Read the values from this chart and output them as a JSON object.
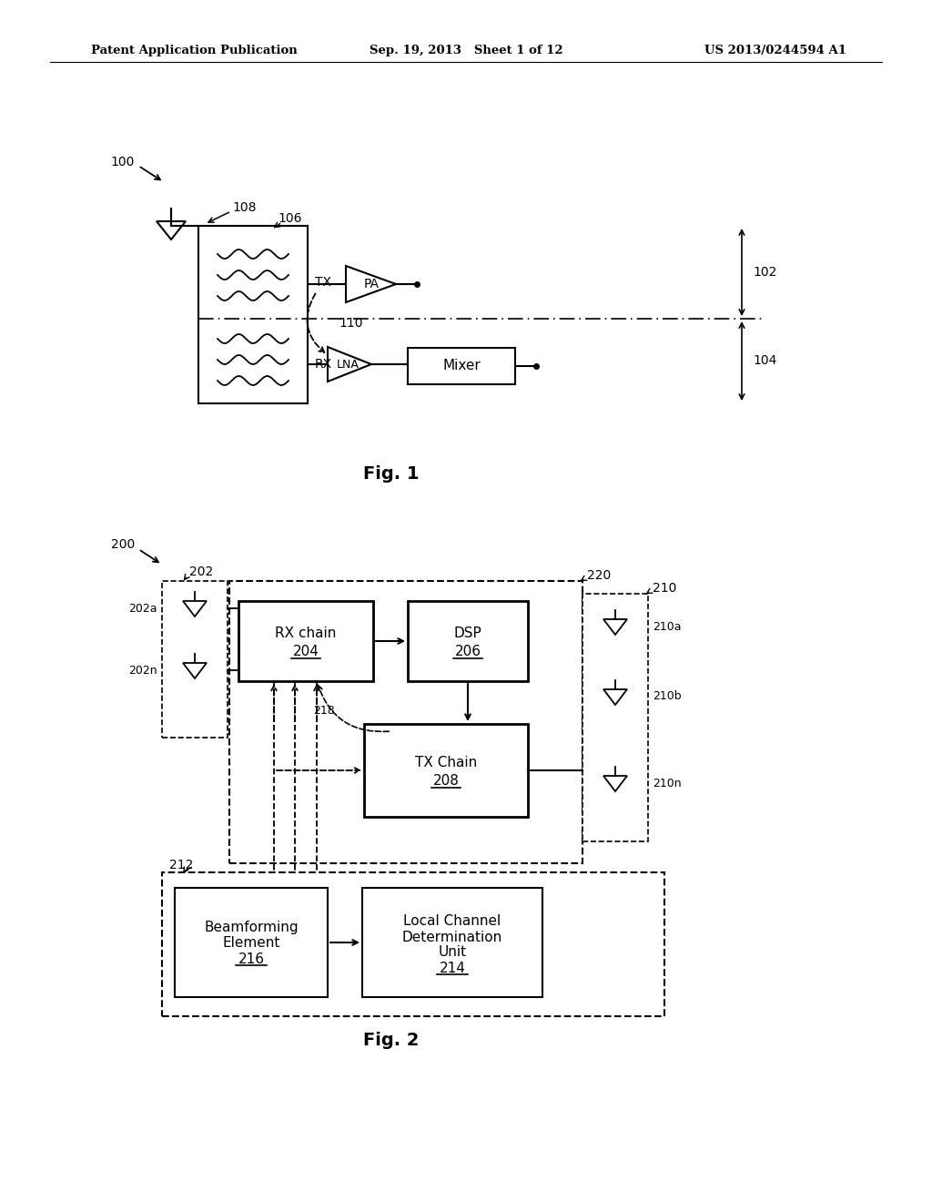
{
  "bg_color": "#ffffff",
  "header_left": "Patent Application Publication",
  "header_mid": "Sep. 19, 2013   Sheet 1 of 12",
  "header_right": "US 2013/0244594 A1"
}
